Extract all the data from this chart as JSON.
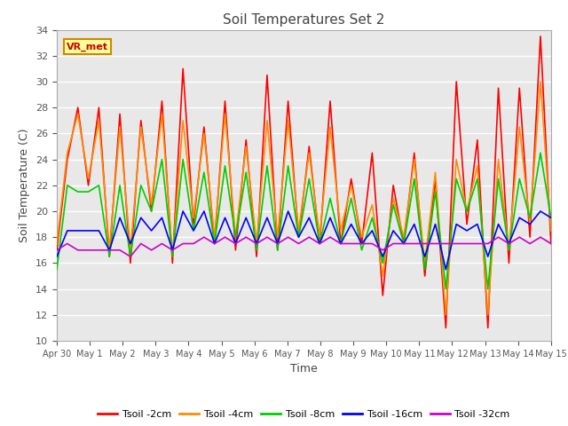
{
  "title": "Soil Temperatures Set 2",
  "xlabel": "Time",
  "ylabel": "Soil Temperature (C)",
  "ylim": [
    10,
    34
  ],
  "yticks": [
    10,
    12,
    14,
    16,
    18,
    20,
    22,
    24,
    26,
    28,
    30,
    32,
    34
  ],
  "series_labels": [
    "Tsoil -2cm",
    "Tsoil -4cm",
    "Tsoil -8cm",
    "Tsoil -16cm",
    "Tsoil -32cm"
  ],
  "series_colors": [
    "#ff0000",
    "#ff8c00",
    "#00cc00",
    "#0000ff",
    "#cc00cc"
  ],
  "annotation_text": "VR_met",
  "annotation_color": "#cc0000",
  "annotation_bg": "#ffff99",
  "annotation_border": "#cc8800",
  "x_tick_labels": [
    "Apr 30",
    "May 1",
    "May 2",
    "May 3",
    "May 4",
    "May 5",
    "May 6",
    "May 7",
    "May 8",
    "May 9",
    "May 10",
    "May 11",
    "May 12",
    "May 13",
    "May 14",
    "May 15"
  ],
  "fig_bg": "#ffffff",
  "plot_bg": "#e8e8e8",
  "grid_color": "#ffffff",
  "t2cm": [
    17.0,
    24.0,
    28.0,
    22.0,
    28.0,
    16.5,
    27.5,
    16.0,
    27.0,
    20.0,
    28.5,
    16.0,
    31.0,
    19.0,
    26.5,
    17.5,
    28.5,
    17.0,
    25.5,
    16.5,
    30.5,
    17.0,
    28.5,
    18.0,
    25.0,
    17.5,
    28.5,
    17.5,
    22.5,
    17.5,
    24.5,
    13.5,
    22.0,
    17.5,
    24.5,
    15.0,
    22.5,
    11.0,
    30.0,
    19.0,
    25.5,
    11.0,
    29.5,
    16.0,
    29.5,
    18.0,
    33.5,
    17.5
  ],
  "t4cm": [
    17.5,
    24.5,
    27.5,
    22.5,
    27.0,
    17.0,
    26.5,
    17.0,
    26.5,
    20.5,
    27.5,
    16.5,
    27.0,
    19.5,
    26.0,
    18.0,
    27.5,
    18.0,
    25.0,
    17.5,
    27.0,
    18.0,
    27.0,
    18.5,
    24.5,
    18.0,
    26.5,
    18.5,
    22.0,
    18.0,
    20.5,
    15.0,
    21.0,
    18.0,
    24.0,
    16.0,
    23.0,
    12.0,
    24.0,
    20.0,
    23.5,
    12.0,
    24.0,
    17.0,
    26.5,
    19.0,
    30.0,
    18.5
  ],
  "t8cm": [
    15.5,
    22.0,
    21.5,
    21.5,
    22.0,
    16.5,
    22.0,
    16.5,
    22.0,
    20.0,
    24.0,
    16.5,
    24.0,
    18.5,
    23.0,
    17.5,
    23.5,
    18.0,
    23.0,
    17.0,
    23.5,
    17.0,
    23.5,
    18.0,
    22.5,
    17.5,
    21.0,
    17.5,
    21.0,
    17.0,
    19.5,
    16.0,
    20.5,
    17.5,
    22.5,
    15.5,
    21.5,
    14.0,
    22.5,
    20.0,
    22.5,
    14.0,
    22.5,
    17.0,
    22.5,
    19.5,
    24.5,
    19.5
  ],
  "t16cm": [
    16.5,
    18.5,
    18.5,
    18.5,
    18.5,
    17.0,
    19.5,
    17.5,
    19.5,
    18.5,
    19.5,
    17.0,
    20.0,
    18.5,
    20.0,
    17.5,
    19.5,
    17.5,
    19.5,
    17.5,
    19.5,
    17.5,
    20.0,
    18.0,
    19.5,
    17.5,
    19.5,
    17.5,
    19.0,
    17.5,
    18.5,
    16.5,
    18.5,
    17.5,
    19.0,
    16.5,
    19.0,
    15.5,
    19.0,
    18.5,
    19.0,
    16.5,
    19.0,
    17.5,
    19.5,
    19.0,
    20.0,
    19.5
  ],
  "t32cm": [
    17.0,
    17.5,
    17.0,
    17.0,
    17.0,
    17.0,
    17.0,
    16.5,
    17.5,
    17.0,
    17.5,
    17.0,
    17.5,
    17.5,
    18.0,
    17.5,
    18.0,
    17.5,
    18.0,
    17.5,
    18.0,
    17.5,
    18.0,
    17.5,
    18.0,
    17.5,
    18.0,
    17.5,
    17.5,
    17.5,
    17.5,
    17.0,
    17.5,
    17.5,
    17.5,
    17.5,
    17.5,
    17.5,
    17.5,
    17.5,
    17.5,
    17.5,
    18.0,
    17.5,
    18.0,
    17.5,
    18.0,
    17.5
  ]
}
